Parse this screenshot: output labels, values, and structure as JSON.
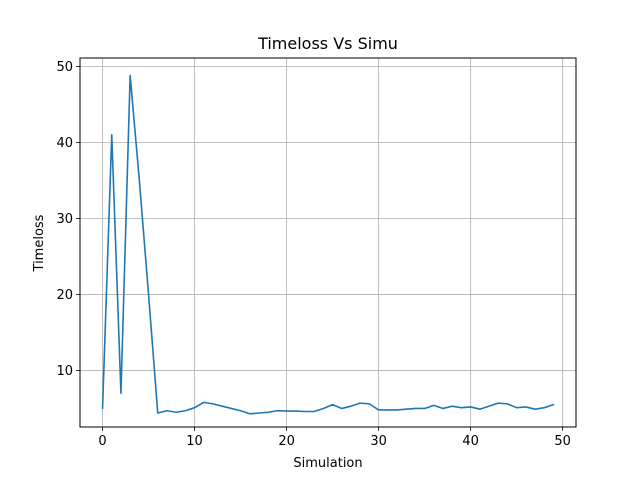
{
  "chart_data": {
    "type": "line",
    "title": "Timeloss Vs Simu",
    "xlabel": "Simulation",
    "ylabel": "Timeloss",
    "xlim": [
      -2.45,
      51.45
    ],
    "ylim": [
      2.56,
      51.1
    ],
    "grid": true,
    "x_ticks": [
      0,
      10,
      20,
      30,
      40,
      50
    ],
    "y_ticks": [
      10,
      20,
      30,
      40,
      50
    ],
    "series": [
      {
        "color": "#1f77b4",
        "x": [
          0,
          1,
          2,
          3,
          4,
          5,
          6,
          7,
          8,
          9,
          10,
          11,
          12,
          13,
          14,
          15,
          16,
          17,
          18,
          19,
          20,
          21,
          22,
          23,
          24,
          25,
          26,
          27,
          28,
          29,
          30,
          31,
          32,
          33,
          34,
          35,
          36,
          37,
          38,
          39,
          40,
          41,
          42,
          43,
          44,
          45,
          46,
          47,
          48,
          49
        ],
        "values": [
          5.0,
          41.0,
          7.0,
          48.8,
          35.0,
          20.0,
          4.4,
          4.7,
          4.5,
          4.7,
          5.1,
          5.8,
          5.6,
          5.3,
          5.0,
          4.7,
          4.3,
          4.4,
          4.5,
          4.7,
          4.65,
          4.65,
          4.6,
          4.6,
          5.0,
          5.5,
          5.0,
          5.3,
          5.7,
          5.6,
          4.8,
          4.8,
          4.8,
          4.9,
          5.0,
          5.0,
          5.4,
          5.0,
          5.3,
          5.1,
          5.2,
          4.9,
          5.3,
          5.7,
          5.6,
          5.1,
          5.2,
          4.9,
          5.1,
          5.5
        ]
      }
    ]
  }
}
